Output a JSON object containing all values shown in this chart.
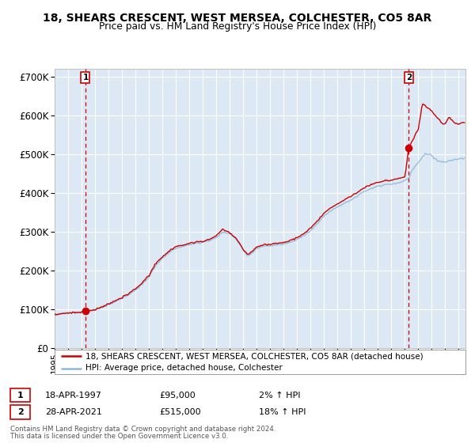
{
  "title1": "18, SHEARS CRESCENT, WEST MERSEA, COLCHESTER, CO5 8AR",
  "title2": "Price paid vs. HM Land Registry's House Price Index (HPI)",
  "legend_line1": "18, SHEARS CRESCENT, WEST MERSEA, COLCHESTER, CO5 8AR (detached house)",
  "legend_line2": "HPI: Average price, detached house, Colchester",
  "annotation1_label": "1",
  "annotation1_date": 1997.29,
  "annotation1_price": 95000,
  "annotation1_text": "18-APR-1997",
  "annotation1_price_text": "£95,000",
  "annotation1_hpi_text": "2% ↑ HPI",
  "annotation2_label": "2",
  "annotation2_date": 2021.29,
  "annotation2_price": 515000,
  "annotation2_text": "28-APR-2021",
  "annotation2_price_text": "£515,000",
  "annotation2_hpi_text": "18% ↑ HPI",
  "footer1": "Contains HM Land Registry data © Crown copyright and database right 2024.",
  "footer2": "This data is licensed under the Open Government Licence v3.0.",
  "hpi_color": "#90b8d8",
  "price_color": "#cc0000",
  "dashed_color": "#cc0000",
  "plot_bg": "#dce9f5",
  "grid_color": "#ffffff",
  "ylim": [
    0,
    720000
  ],
  "xlim_start": 1995.0,
  "xlim_end": 2025.5,
  "hpi_anchors": [
    [
      1995.0,
      88000
    ],
    [
      1995.5,
      87500
    ],
    [
      1996.0,
      88500
    ],
    [
      1996.5,
      90000
    ],
    [
      1997.0,
      91000
    ],
    [
      1997.3,
      93000
    ],
    [
      1998.0,
      97000
    ],
    [
      1998.5,
      103000
    ],
    [
      1999.0,
      110000
    ],
    [
      1999.5,
      118000
    ],
    [
      2000.0,
      127000
    ],
    [
      2000.5,
      138000
    ],
    [
      2001.0,
      148000
    ],
    [
      2001.5,
      162000
    ],
    [
      2002.0,
      180000
    ],
    [
      2002.5,
      210000
    ],
    [
      2003.0,
      228000
    ],
    [
      2003.5,
      242000
    ],
    [
      2004.0,
      252000
    ],
    [
      2004.5,
      258000
    ],
    [
      2005.0,
      262000
    ],
    [
      2005.5,
      265000
    ],
    [
      2006.0,
      268000
    ],
    [
      2006.5,
      273000
    ],
    [
      2007.0,
      282000
    ],
    [
      2007.5,
      295000
    ],
    [
      2008.0,
      290000
    ],
    [
      2008.5,
      275000
    ],
    [
      2009.0,
      248000
    ],
    [
      2009.3,
      232000
    ],
    [
      2009.6,
      238000
    ],
    [
      2009.9,
      248000
    ],
    [
      2010.0,
      252000
    ],
    [
      2010.5,
      258000
    ],
    [
      2011.0,
      260000
    ],
    [
      2011.5,
      262000
    ],
    [
      2012.0,
      263000
    ],
    [
      2012.5,
      268000
    ],
    [
      2013.0,
      275000
    ],
    [
      2013.5,
      285000
    ],
    [
      2014.0,
      298000
    ],
    [
      2014.5,
      315000
    ],
    [
      2015.0,
      335000
    ],
    [
      2015.5,
      348000
    ],
    [
      2016.0,
      358000
    ],
    [
      2016.5,
      368000
    ],
    [
      2017.0,
      378000
    ],
    [
      2017.5,
      388000
    ],
    [
      2018.0,
      398000
    ],
    [
      2018.5,
      408000
    ],
    [
      2019.0,
      415000
    ],
    [
      2019.5,
      420000
    ],
    [
      2020.0,
      422000
    ],
    [
      2020.5,
      425000
    ],
    [
      2021.0,
      432000
    ],
    [
      2021.3,
      435000
    ],
    [
      2021.5,
      455000
    ],
    [
      2022.0,
      478000
    ],
    [
      2022.5,
      500000
    ],
    [
      2023.0,
      495000
    ],
    [
      2023.5,
      480000
    ],
    [
      2024.0,
      478000
    ],
    [
      2024.5,
      485000
    ],
    [
      2025.3,
      490000
    ]
  ],
  "prop_anchors": [
    [
      1995.0,
      87000
    ],
    [
      1995.5,
      86500
    ],
    [
      1996.0,
      88000
    ],
    [
      1996.5,
      90000
    ],
    [
      1997.0,
      91500
    ],
    [
      1997.3,
      95000
    ],
    [
      1998.0,
      98000
    ],
    [
      1998.5,
      104000
    ],
    [
      1999.0,
      111000
    ],
    [
      1999.5,
      120000
    ],
    [
      2000.0,
      129000
    ],
    [
      2000.5,
      141000
    ],
    [
      2001.0,
      151000
    ],
    [
      2001.5,
      166000
    ],
    [
      2002.0,
      184000
    ],
    [
      2002.5,
      215000
    ],
    [
      2003.0,
      232000
    ],
    [
      2003.5,
      245000
    ],
    [
      2004.0,
      256000
    ],
    [
      2004.5,
      261000
    ],
    [
      2005.0,
      265000
    ],
    [
      2005.5,
      268000
    ],
    [
      2006.0,
      270000
    ],
    [
      2006.5,
      276000
    ],
    [
      2007.0,
      286000
    ],
    [
      2007.5,
      302000
    ],
    [
      2008.0,
      293000
    ],
    [
      2008.5,
      276000
    ],
    [
      2009.0,
      250000
    ],
    [
      2009.3,
      235000
    ],
    [
      2009.6,
      242000
    ],
    [
      2009.9,
      252000
    ],
    [
      2010.0,
      255000
    ],
    [
      2010.5,
      262000
    ],
    [
      2011.0,
      263000
    ],
    [
      2011.5,
      265000
    ],
    [
      2012.0,
      266000
    ],
    [
      2012.5,
      272000
    ],
    [
      2013.0,
      280000
    ],
    [
      2013.5,
      290000
    ],
    [
      2014.0,
      304000
    ],
    [
      2014.5,
      322000
    ],
    [
      2015.0,
      342000
    ],
    [
      2015.5,
      355000
    ],
    [
      2016.0,
      365000
    ],
    [
      2016.5,
      376000
    ],
    [
      2017.0,
      387000
    ],
    [
      2017.5,
      397000
    ],
    [
      2018.0,
      408000
    ],
    [
      2018.5,
      418000
    ],
    [
      2019.0,
      425000
    ],
    [
      2019.5,
      430000
    ],
    [
      2020.0,
      432000
    ],
    [
      2020.5,
      435000
    ],
    [
      2021.0,
      440000
    ],
    [
      2021.29,
      515000
    ],
    [
      2021.5,
      530000
    ],
    [
      2022.0,
      565000
    ],
    [
      2022.3,
      630000
    ],
    [
      2022.6,
      620000
    ],
    [
      2023.0,
      610000
    ],
    [
      2023.5,
      590000
    ],
    [
      2023.8,
      575000
    ],
    [
      2024.0,
      578000
    ],
    [
      2024.3,
      595000
    ],
    [
      2024.7,
      580000
    ],
    [
      2025.0,
      578000
    ],
    [
      2025.3,
      582000
    ]
  ]
}
